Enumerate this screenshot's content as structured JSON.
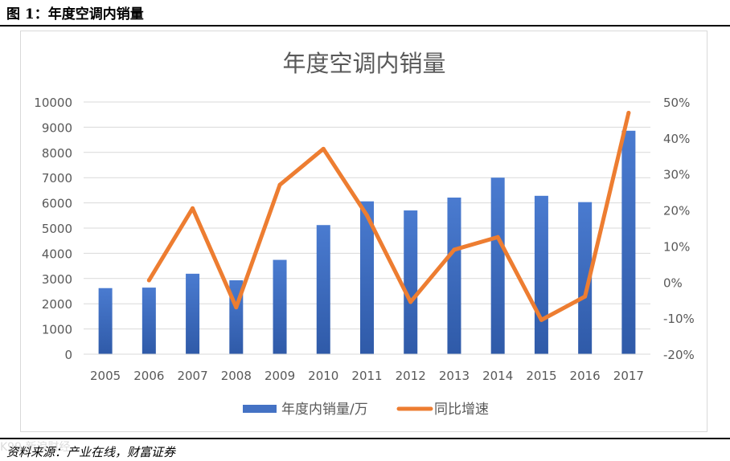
{
  "caption": "图 1：年度空调内销量",
  "source": "资料来源：产业在线，财富证券",
  "watermark": "K99 新浪财经",
  "chart_data": {
    "type": "bar+line",
    "title": "年度空调内销量",
    "categories": [
      "2005",
      "2006",
      "2007",
      "2008",
      "2009",
      "2010",
      "2011",
      "2012",
      "2013",
      "2014",
      "2015",
      "2016",
      "2017"
    ],
    "series": [
      {
        "name": "年度内销量/万",
        "type": "bar",
        "axis": "left",
        "color": "#4472c4",
        "values": [
          2620,
          2640,
          3190,
          2930,
          3740,
          5120,
          6060,
          5700,
          6210,
          7000,
          6280,
          6030,
          8860
        ]
      },
      {
        "name": "同比增速",
        "type": "line",
        "axis": "right",
        "color": "#ed7d31",
        "values": [
          null,
          0.5,
          20.5,
          -7.0,
          27.0,
          37.0,
          18.5,
          -5.5,
          9.0,
          12.5,
          -10.5,
          -4.0,
          47.0
        ]
      }
    ],
    "y_left": {
      "min": 0,
      "max": 10000,
      "step": 1000,
      "ticks": [
        "0",
        "1000",
        "2000",
        "3000",
        "4000",
        "5000",
        "6000",
        "7000",
        "8000",
        "9000",
        "10000"
      ]
    },
    "y_right": {
      "min": -20,
      "max": 50,
      "step": 10,
      "ticks": [
        "-20%",
        "-10%",
        "0%",
        "10%",
        "20%",
        "30%",
        "40%",
        "50%"
      ]
    },
    "grid": true,
    "legend": "bottom"
  }
}
